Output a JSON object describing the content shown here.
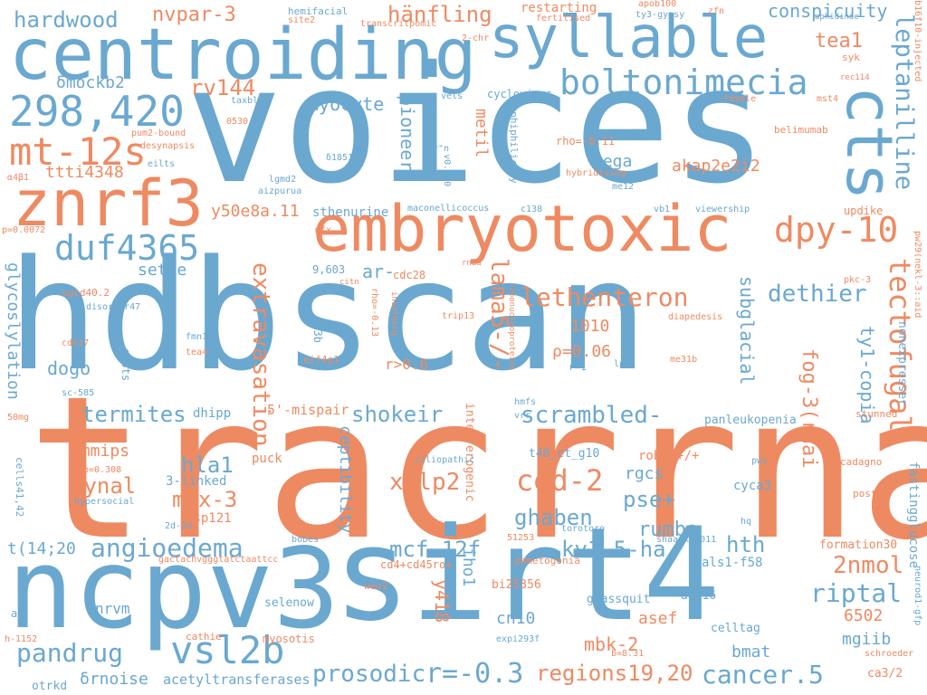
{
  "colors": {
    "blue": "#6aa8d0",
    "orange": "#ee8a62",
    "background": "#ffffff"
  },
  "words": [
    "hdbscan",
    "tracrrna",
    "voices",
    "sirt4",
    "ncpv3",
    "centroiding",
    "syllable",
    "embryotoxic",
    "znrf3",
    "cts",
    "298,420",
    "mt-12s",
    "boltonimecia",
    "leptanilline",
    "dpy-10",
    "duf4365",
    "vsl2b",
    "angioedema",
    "ced-2",
    "tectofugal",
    "lethenteron",
    "dethier",
    "scrambled-",
    "termites",
    "shokeir",
    "xklp2",
    "cancer.5",
    "prosodic",
    "r=-0.3",
    "regions19,20",
    "extravasation",
    "lama5-/-",
    "pandrug",
    "riptal",
    "2nmol",
    "mcf-12f",
    "kv1.5-ha",
    "ghaben",
    "pse+",
    "rumba",
    "hth",
    "mex-3",
    "hla1",
    "dynal",
    "hardwood",
    "nvpar-3",
    "hänfling",
    "conspicuity",
    "tea1",
    "rv144",
    "myocyte",
    "δmockb2",
    "ttti4348",
    "y50e8a.11",
    "setae",
    "dogo",
    "ar-",
    "akap2e2i2",
    "pega",
    "subglacial",
    "fog-3(rnai",
    "ty1-copia",
    "glycoslylation",
    "pioneers",
    "metil",
    "y418",
    "iho1",
    "cn10",
    "mbk-2",
    "asef",
    "bmat",
    "mgiib",
    "6502",
    "rgcs",
    "smmips",
    "t(14;20",
    "ceptibility",
    "ρ=0.06",
    "r>0.6",
    "1010",
    "sthenurine",
    "δrnoise",
    "acetyltransferases",
    "5'-mispair",
    "dhipp",
    "nrvm",
    "3-linked",
    "msp121",
    "puck",
    "cd4+cd45ro+",
    "interferogenic",
    "robo2+/+",
    "t48_ct_g10",
    "cyca3",
    "panleukopenia",
    "nonexpresser",
    "fastingglucose",
    "formation30",
    "als1-f58",
    "atp16",
    "celltag",
    "grassquit",
    "bi25356",
    "gametogonia",
    "wee2",
    "selenow",
    "myosotis",
    "cathie",
    "otrkd",
    "h-1152",
    "expi293f",
    "b=8.31",
    "schroeder",
    "ca3/2",
    "neurod1-gfp",
    "stunned",
    "posta",
    "cadagno",
    "pws",
    "hq",
    "shaanxi2011",
    "torotoro",
    "51253",
    "ciliopathic",
    "hmfs",
    "vrr",
    "lptc",
    "me31b",
    "diapedesis",
    "r\"1",
    "trip13",
    "ribonucleoproteins",
    "inselberg",
    "rho=-0.13",
    "rnaa",
    "citn",
    "cdc28",
    "9,603",
    "s43b",
    "eif4g1",
    "fmn11",
    "tea4",
    "oj5ts",
    "cdk17",
    "sc-585",
    "50mg",
    "cells41,42",
    "p=0.308",
    "hypersocial",
    "2d-3d",
    "bobes",
    "gactachvgggtatctaattcc",
    "sgcd40.2",
    "disorder47",
    "p=0.0072",
    "mfx",
    "aizpurua",
    "lgmd2",
    "eilts",
    "α4β1",
    "desynapsis",
    "pum2-bound",
    "0530",
    "taxblv",
    "site2",
    "hemifacial",
    "transcritpomic",
    "restarting",
    "fertilised",
    "apob100",
    "ty3-gypsy",
    "zfn",
    "2-chr",
    "vels",
    "r\"n",
    "v0.7.0",
    "cyclovirus",
    "amphiphilicity",
    "rho=-0.11",
    "hybridising",
    "me12",
    "δ1851",
    "maconellicoccus",
    "c138",
    "vb1",
    "viewership",
    "updike",
    "belimumab",
    "-female",
    "mst4",
    "syk",
    "rec114",
    "aphidinae",
    "b16f10-injected",
    "pw29(nekl-3::aid",
    "pkc-3",
    "a"
  ]
}
